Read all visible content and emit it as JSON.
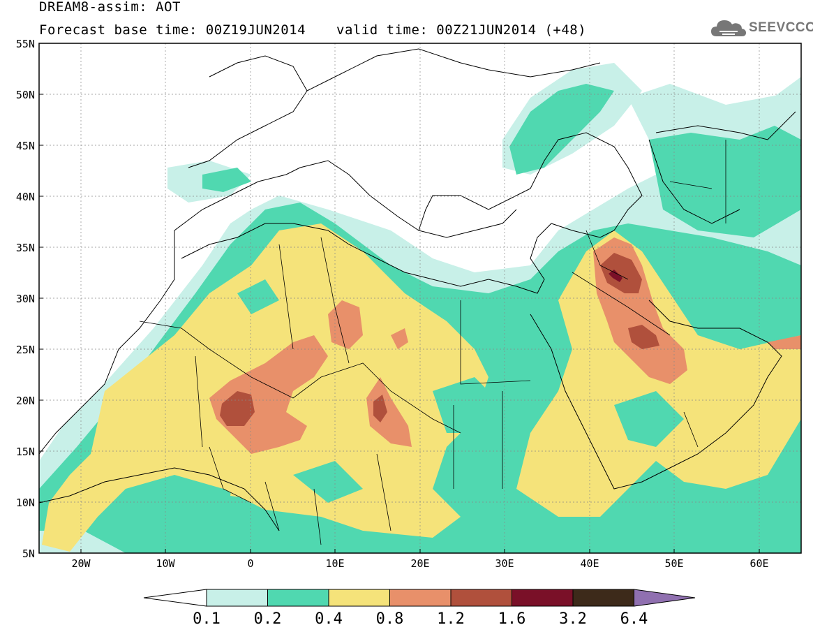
{
  "header": {
    "title": "DREAM8-assim: AOT",
    "forecast_base": "Forecast base time: 00Z19JUN2014",
    "valid_time": "valid time: 00Z21JUN2014 (+48)"
  },
  "logo": {
    "text": "SEEVCCC",
    "icon": "cloud-icon"
  },
  "axes": {
    "lat_labels": [
      "55N",
      "50N",
      "45N",
      "40N",
      "35N",
      "30N",
      "25N",
      "20N",
      "15N",
      "10N",
      "5N"
    ],
    "lon_labels": [
      "20W",
      "10W",
      "0",
      "10E",
      "20E",
      "30E",
      "40E",
      "50E",
      "60E"
    ]
  },
  "colorbar": {
    "labels": [
      "0.1",
      "0.2",
      "0.4",
      "0.8",
      "1.2",
      "1.6",
      "3.2",
      "6.4"
    ],
    "colors": [
      "#ffffff",
      "#c8f0e8",
      "#50d8b0",
      "#f5e37a",
      "#e8906a",
      "#b0503c",
      "#7a1028",
      "#3d2a1a",
      "#9070b0"
    ]
  },
  "map_style": {
    "land_outline": "#000000",
    "grid": "#888888"
  }
}
